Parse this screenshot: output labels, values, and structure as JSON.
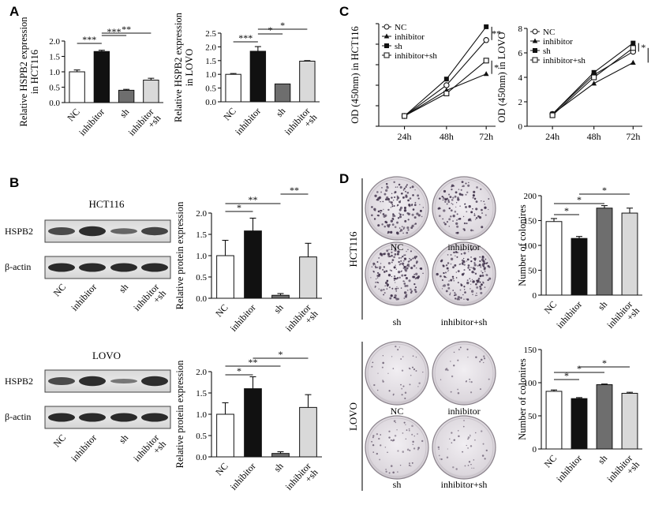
{
  "panels": {
    "A": "A",
    "B": "B",
    "C": "C",
    "D": "D"
  },
  "colors": {
    "NC": "#ffffff",
    "inhibitor": "#111111",
    "sh": "#6e6e6e",
    "inhibitor_sh": "#d9d9d9"
  },
  "blots": {
    "hct_title": "HCT116",
    "lovo_title": "LOVO",
    "row1": "HSPB2",
    "row2": "β-actin",
    "xlabels": [
      "NC",
      "inhibitor",
      "sh",
      "inhibitor +sh"
    ]
  },
  "colonies": {
    "hct_label": "HCT116",
    "lovo_label": "LOVO",
    "names": [
      "NC",
      "inhibitor",
      "sh",
      "inhibitor+sh"
    ]
  },
  "chart_data": [
    {
      "id": "A1",
      "type": "bar",
      "categories": [
        "NC",
        "inhibitor",
        "sh",
        "inhibitor +sh"
      ],
      "values": [
        1.0,
        1.66,
        0.4,
        0.73
      ],
      "errors": [
        0.06,
        0.04,
        0.03,
        0.06
      ],
      "ylabel": "Relative HSPB2 expression in HCT116",
      "ylim": [
        0,
        2.0
      ],
      "yticks": [
        "0.0",
        "0.5",
        "1.0",
        "1.5",
        "2.0"
      ],
      "sig": [
        {
          "a": 0,
          "b": 1,
          "t": "***"
        },
        {
          "a": 1,
          "b": 2,
          "t": "***"
        },
        {
          "a": 1,
          "b": 3,
          "t": "**"
        }
      ]
    },
    {
      "id": "A2",
      "type": "bar",
      "categories": [
        "NC",
        "inhibitor",
        "sh",
        "inhibitor +sh"
      ],
      "values": [
        1.0,
        1.84,
        0.65,
        1.48
      ],
      "errors": [
        0.03,
        0.17,
        0.0,
        0.02
      ],
      "ylabel": "Relative HSPB2 expression in LOVO",
      "ylim": [
        0,
        2.5
      ],
      "yticks": [
        "0.0",
        "0.5",
        "1.0",
        "1.5",
        "2.0",
        "2.5"
      ],
      "sig": [
        {
          "a": 0,
          "b": 1,
          "t": "***"
        },
        {
          "a": 1,
          "b": 2,
          "t": "*"
        },
        {
          "a": 1,
          "b": 3,
          "t": "*"
        }
      ]
    },
    {
      "id": "B1",
      "type": "bar",
      "categories": [
        "NC",
        "inhibitor",
        "sh",
        "inhibitor +sh"
      ],
      "values": [
        1.0,
        1.58,
        0.07,
        0.97
      ],
      "errors": [
        0.36,
        0.3,
        0.04,
        0.32
      ],
      "ylabel": "Relative protein expression",
      "ylim": [
        0,
        2.0
      ],
      "yticks": [
        "0.0",
        "0.5",
        "1.0",
        "1.5",
        "2.0"
      ],
      "sig": [
        {
          "a": 0,
          "b": 1,
          "t": "*"
        },
        {
          "a": 0,
          "b": 2,
          "t": "**"
        },
        {
          "a": 2,
          "b": 3,
          "t": "**"
        }
      ]
    },
    {
      "id": "B2",
      "type": "bar",
      "categories": [
        "NC",
        "inhibitor",
        "sh",
        "inhibitor +sh"
      ],
      "values": [
        1.0,
        1.6,
        0.08,
        1.16
      ],
      "errors": [
        0.27,
        0.28,
        0.04,
        0.3
      ],
      "ylabel": "Relative protein expression",
      "ylim": [
        0,
        2.0
      ],
      "yticks": [
        "0.0",
        "0.5",
        "1.0",
        "1.5",
        "2.0"
      ],
      "sig": [
        {
          "a": 0,
          "b": 1,
          "t": "*"
        },
        {
          "a": 0,
          "b": 2,
          "t": "**"
        },
        {
          "a": 1,
          "b": 3,
          "t": "*"
        }
      ]
    },
    {
      "id": "C1",
      "type": "line",
      "x": [
        "24h",
        "48h",
        "72h"
      ],
      "series": [
        {
          "name": "NC",
          "values": [
            1.0,
            4.0,
            8.4
          ],
          "marker": "circle-open"
        },
        {
          "name": "inhibitor",
          "values": [
            1.0,
            3.5,
            5.1
          ],
          "marker": "triangle-filled"
        },
        {
          "name": "sh",
          "values": [
            1.0,
            4.6,
            9.7
          ],
          "marker": "square-filled"
        },
        {
          "name": "inhibitor+sh",
          "values": [
            1.0,
            3.2,
            6.4
          ],
          "marker": "square-open"
        }
      ],
      "ylabel": "OD (450nm) in HCT116",
      "ylim": [
        0,
        10
      ],
      "sig": [
        "**",
        "*"
      ]
    },
    {
      "id": "C2",
      "type": "line",
      "x": [
        "24h",
        "48h",
        "72h"
      ],
      "series": [
        {
          "name": "NC",
          "values": [
            1.0,
            4.2,
            6.1
          ],
          "marker": "circle-open"
        },
        {
          "name": "inhibitor",
          "values": [
            1.0,
            3.5,
            5.2
          ],
          "marker": "triangle-filled"
        },
        {
          "name": "sh",
          "values": [
            1.0,
            4.4,
            6.8
          ],
          "marker": "square-filled"
        },
        {
          "name": "inhibitor+sh",
          "values": [
            0.9,
            4.0,
            6.4
          ],
          "marker": "square-open"
        }
      ],
      "ylabel": "OD (450nm) in LOVO",
      "ylim": [
        0,
        8
      ],
      "yticks": [
        "0",
        "2",
        "4",
        "6",
        "8"
      ],
      "sig": [
        "*",
        "*"
      ]
    },
    {
      "id": "D1",
      "type": "bar",
      "categories": [
        "NC",
        "inhibitor",
        "sh",
        "inhibitor +sh"
      ],
      "values": [
        148,
        114,
        175,
        165
      ],
      "errors": [
        6,
        4,
        5,
        10
      ],
      "ylabel": "Number of colonires",
      "ylim": [
        0,
        200
      ],
      "yticks": [
        "0",
        "50",
        "100",
        "150",
        "200"
      ],
      "sig": [
        {
          "a": 0,
          "b": 1,
          "t": "*"
        },
        {
          "a": 0,
          "b": 2,
          "t": "*"
        },
        {
          "a": 1,
          "b": 3,
          "t": "*"
        }
      ]
    },
    {
      "id": "D2",
      "type": "bar",
      "categories": [
        "NC",
        "inhibitor",
        "sh",
        "inhibitor +sh"
      ],
      "values": [
        87,
        76,
        97,
        84
      ],
      "errors": [
        2,
        1.5,
        1,
        1.5
      ],
      "ylabel": "Number of colonires",
      "ylim": [
        0,
        150
      ],
      "yticks": [
        "0",
        "50",
        "100",
        "150"
      ],
      "sig": [
        {
          "a": 0,
          "b": 1,
          "t": "*"
        },
        {
          "a": 0,
          "b": 2,
          "t": "*"
        },
        {
          "a": 1,
          "b": 3,
          "t": "*"
        }
      ]
    }
  ]
}
